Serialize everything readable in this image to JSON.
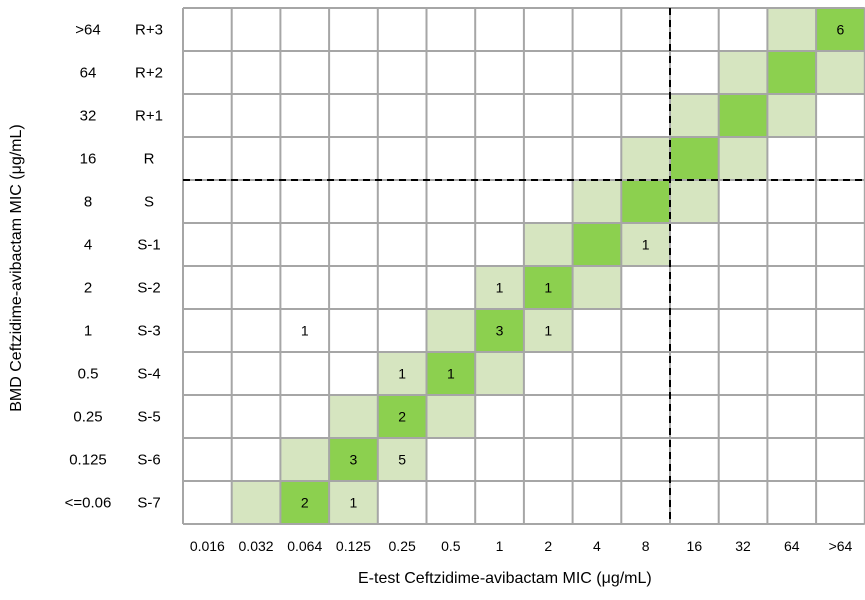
{
  "chart_data": {
    "type": "heatmap",
    "xlabel": "E-test Ceftzidime-avibactam MIC (μg/mL)",
    "ylabel": "BMD Ceftzidime-avibactam MIC (μg/mL)",
    "x_categories": [
      "0.016",
      "0.032",
      "0.064",
      "0.125",
      "0.25",
      "0.5",
      "1",
      "2",
      "4",
      "8",
      "16",
      "32",
      "64",
      ">64"
    ],
    "y_categories": [
      ">64",
      "64",
      "32",
      "16",
      "8",
      "4",
      "2",
      "1",
      "0.5",
      "0.25",
      "0.125",
      "<=0.06"
    ],
    "y_sublabels": [
      "R+3",
      "R+2",
      "R+1",
      "R",
      "S",
      "S-1",
      "S-2",
      "S-3",
      "S-4",
      "S-5",
      "S-6",
      "S-7"
    ],
    "counts": [
      {
        "y": ">64",
        "x": ">64",
        "count": 6
      },
      {
        "y": "4",
        "x": "8",
        "count": 1
      },
      {
        "y": "2",
        "x": "1",
        "count": 1
      },
      {
        "y": "2",
        "x": "2",
        "count": 1
      },
      {
        "y": "1",
        "x": "0.064",
        "count": 1
      },
      {
        "y": "1",
        "x": "1",
        "count": 3
      },
      {
        "y": "1",
        "x": "2",
        "count": 1
      },
      {
        "y": "0.5",
        "x": "0.25",
        "count": 1
      },
      {
        "y": "0.5",
        "x": "0.5",
        "count": 1
      },
      {
        "y": "0.25",
        "x": "0.25",
        "count": 2
      },
      {
        "y": "0.125",
        "x": "0.125",
        "count": 3
      },
      {
        "y": "0.125",
        "x": "0.25",
        "count": 5
      },
      {
        "y": "<=0.06",
        "x": "0.064",
        "count": 2
      },
      {
        "y": "<=0.06",
        "x": "0.125",
        "count": 1
      }
    ],
    "breakpoint_lines": {
      "x_between": [
        "8",
        "16"
      ],
      "y_between": [
        "16",
        "8"
      ],
      "style": "dashed"
    },
    "colors": {
      "agreement": "#8cd04f",
      "within_one_dilution": "#d6e5c0",
      "grid": "#a6a6a6",
      "empty": "#ffffff"
    },
    "grid": true
  }
}
